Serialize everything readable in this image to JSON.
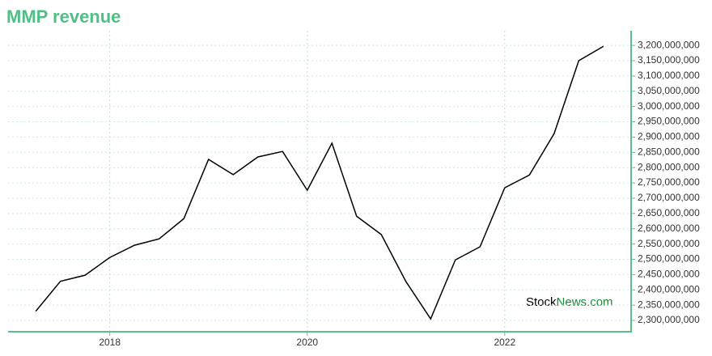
{
  "chart_data": {
    "type": "line",
    "title": "MMP revenue",
    "x": [
      2017.25,
      2017.5,
      2017.75,
      2018.0,
      2018.25,
      2018.5,
      2018.75,
      2019.0,
      2019.25,
      2019.5,
      2019.75,
      2020.0,
      2020.25,
      2020.5,
      2020.75,
      2021.0,
      2021.25,
      2021.5,
      2021.75,
      2022.0,
      2022.25,
      2022.5,
      2022.75,
      2023.0
    ],
    "series": [
      {
        "name": "MMP revenue",
        "color": "#000000",
        "values": [
          2330000000,
          2428000000,
          2448000000,
          2506000000,
          2546000000,
          2567000000,
          2633000000,
          2827000000,
          2777000000,
          2835000000,
          2853000000,
          2726000000,
          2880000000,
          2641000000,
          2581000000,
          2427000000,
          2305000000,
          2498000000,
          2541000000,
          2734000000,
          2776000000,
          2911000000,
          3150000000,
          3197000000
        ]
      }
    ],
    "xlim": [
      2016.97,
      2023.28
    ],
    "xticks": [
      2018,
      2020,
      2022
    ],
    "ylim": [
      2263000000,
      3248000000
    ],
    "yticks": [
      {
        "value": 2300000000,
        "label": "2,300,000,000"
      },
      {
        "value": 2350000000,
        "label": "2,350,000,000"
      },
      {
        "value": 2400000000,
        "label": "2,400,000,000"
      },
      {
        "value": 2450000000,
        "label": "2,450,000,000"
      },
      {
        "value": 2500000000,
        "label": "2,500,000,000"
      },
      {
        "value": 2550000000,
        "label": "2,550,000,000"
      },
      {
        "value": 2600000000,
        "label": "2,600,000,000"
      },
      {
        "value": 2650000000,
        "label": "2,650,000,000"
      },
      {
        "value": 2700000000,
        "label": "2,700,000,000"
      },
      {
        "value": 2750000000,
        "label": "2,750,000,000"
      },
      {
        "value": 2800000000,
        "label": "2,800,000,000"
      },
      {
        "value": 2850000000,
        "label": "2,850,000,000"
      },
      {
        "value": 2900000000,
        "label": "2,900,000,000"
      },
      {
        "value": 2950000000,
        "label": "2,950,000,000"
      },
      {
        "value": 3000000000,
        "label": "3,000,000,000"
      },
      {
        "value": 3050000000,
        "label": "3,050,000,000"
      },
      {
        "value": 3100000000,
        "label": "3,100,000,000"
      },
      {
        "value": 3150000000,
        "label": "3,150,000,000"
      },
      {
        "value": 3200000000,
        "label": "3,200,000,000"
      }
    ],
    "grid": true,
    "axis_color": "#5cbf8a",
    "watermark": {
      "brand": "Stock",
      "suffix": "News.com"
    }
  }
}
